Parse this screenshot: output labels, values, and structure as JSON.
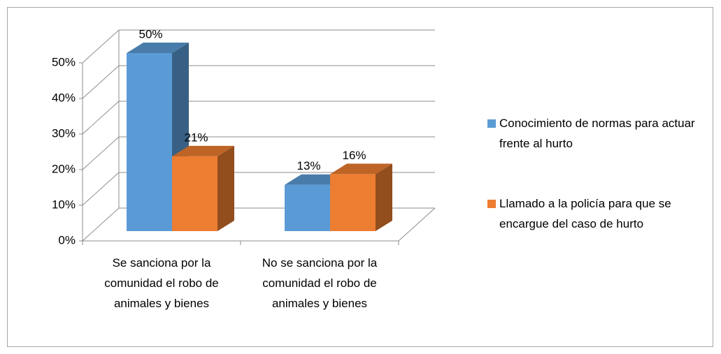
{
  "chart_data": {
    "type": "bar3d",
    "categories": [
      "Se sanciona por la comunidad el robo de animales y bienes",
      "No se sanciona por la comunidad el robo de animales y bienes"
    ],
    "series": [
      {
        "name": "Conocimiento de normas para actuar frente al hurto",
        "color": "#5b9bd5",
        "values": [
          50,
          13
        ],
        "value_labels": [
          "50%",
          "13%"
        ]
      },
      {
        "name": "Llamado a la policía para que se encargue del caso de hurto",
        "color": "#ed7d31",
        "values": [
          21,
          16
        ],
        "value_labels": [
          "21%",
          "16%"
        ]
      }
    ],
    "ylim": [
      0,
      50
    ],
    "yticks": [
      {
        "value": 0,
        "label": "0%"
      },
      {
        "value": 10,
        "label": "10%"
      },
      {
        "value": 20,
        "label": "20%"
      },
      {
        "value": 30,
        "label": "30%"
      },
      {
        "value": 40,
        "label": "40%"
      },
      {
        "value": 50,
        "label": "50%"
      }
    ],
    "grid": true,
    "legend": "right"
  }
}
